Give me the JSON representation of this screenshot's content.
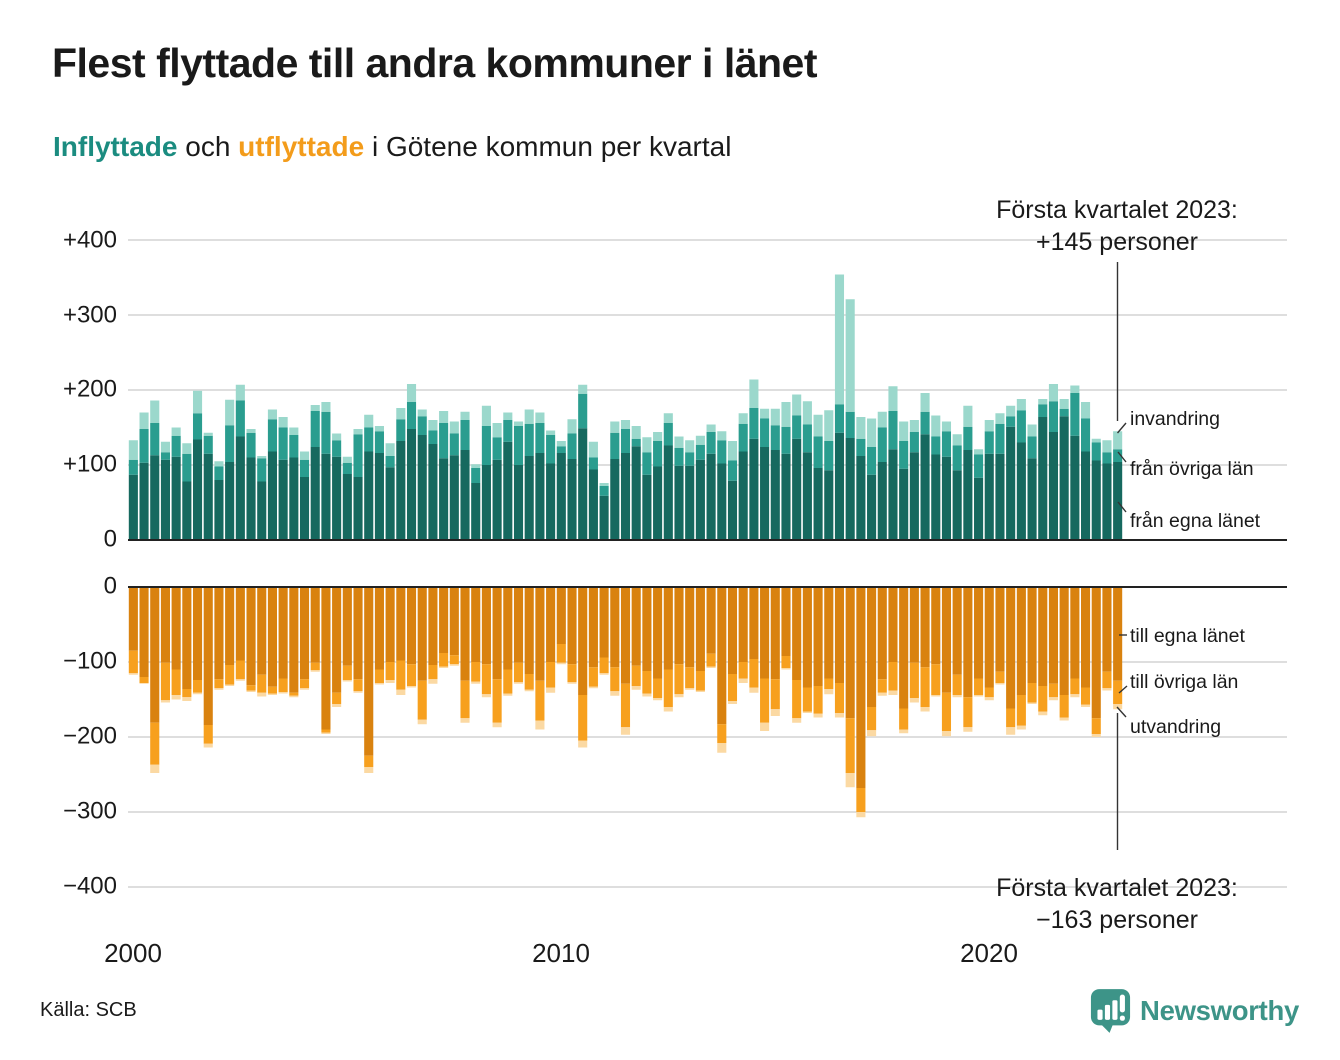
{
  "header": {
    "title": "Flest flyttade till andra kommuner i länet",
    "subtitle_inflyttade": "Inflyttade",
    "subtitle_och": " och ",
    "subtitle_utflyttade": "utflyttade",
    "subtitle_rest": " i Götene kommun per kvartal"
  },
  "annotations": {
    "top_line1": "Första kvartalet 2023:",
    "top_line2": "+145 personer",
    "bottom_line1": "Första kvartalet 2023:",
    "bottom_line2": "−163 personer"
  },
  "footer": {
    "source": "Källa: SCB",
    "logo_text": "Newsworthy"
  },
  "chart_data": {
    "type": "bar",
    "title": "Flest flyttade till andra kommuner i länet",
    "subtitle": "Inflyttade och utflyttade i Götene kommun per kvartal",
    "x_quarters": {
      "start": "2000-Q1",
      "end": "2023-Q1",
      "count": 93
    },
    "x_tick_labels": [
      "2000",
      "2010",
      "2020"
    ],
    "y_axis_top": {
      "ticks": [
        "+400",
        "+300",
        "+200",
        "+100",
        "0"
      ],
      "values": [
        400,
        300,
        200,
        100,
        0
      ]
    },
    "y_axis_bottom": {
      "ticks": [
        "0",
        "−100",
        "−200",
        "−300",
        "−400"
      ],
      "values": [
        0,
        -100,
        -200,
        -300,
        -400
      ]
    },
    "grid": true,
    "legend_position": "right-edge-labels",
    "inflow": {
      "direction": "up",
      "series": [
        {
          "name": "från egna länet",
          "color": "#16695f",
          "values": [
            87,
            103,
            113,
            107,
            111,
            78,
            134,
            115,
            80,
            104,
            138,
            110,
            78,
            118,
            107,
            110,
            84,
            124,
            115,
            111,
            88,
            84,
            118,
            116,
            97,
            132,
            148,
            140,
            128,
            109,
            113,
            120,
            76,
            100,
            107,
            131,
            100,
            112,
            116,
            102,
            116,
            108,
            149,
            94,
            59,
            108,
            116,
            125,
            87,
            98,
            126,
            99,
            99,
            107,
            115,
            102,
            79,
            118,
            135,
            124,
            120,
            115,
            135,
            117,
            96,
            93,
            143,
            136,
            112,
            87,
            104,
            121,
            95,
            117,
            141,
            114,
            111,
            93,
            120,
            83,
            115,
            115,
            151,
            130,
            109,
            164,
            144,
            165,
            139,
            118,
            106,
            102,
            104
          ]
        },
        {
          "name": "från övriga län",
          "color": "#2a9d8f",
          "values": [
            20,
            45,
            43,
            10,
            28,
            37,
            35,
            24,
            18,
            49,
            48,
            33,
            31,
            43,
            43,
            30,
            23,
            48,
            56,
            22,
            15,
            57,
            32,
            29,
            15,
            29,
            36,
            25,
            18,
            47,
            29,
            40,
            20,
            52,
            30,
            29,
            52,
            43,
            40,
            38,
            9,
            34,
            46,
            16,
            13,
            35,
            32,
            10,
            30,
            34,
            30,
            24,
            18,
            20,
            29,
            31,
            27,
            37,
            41,
            38,
            33,
            36,
            31,
            37,
            42,
            39,
            38,
            35,
            23,
            37,
            46,
            51,
            37,
            27,
            30,
            24,
            34,
            33,
            31,
            31,
            30,
            40,
            14,
            43,
            29,
            17,
            41,
            10,
            57,
            44,
            24,
            15,
            17
          ]
        },
        {
          "name": "invandring",
          "color": "#9bd8cc",
          "values": [
            26,
            22,
            30,
            14,
            11,
            14,
            30,
            4,
            7,
            34,
            21,
            5,
            3,
            13,
            14,
            10,
            11,
            8,
            13,
            9,
            8,
            7,
            17,
            7,
            17,
            15,
            24,
            9,
            14,
            16,
            16,
            11,
            5,
            27,
            19,
            10,
            6,
            19,
            14,
            6,
            7,
            19,
            12,
            21,
            4,
            15,
            12,
            17,
            20,
            12,
            13,
            15,
            16,
            12,
            10,
            12,
            26,
            14,
            38,
            13,
            22,
            33,
            28,
            31,
            29,
            41,
            173,
            150,
            29,
            38,
            21,
            33,
            26,
            16,
            25,
            28,
            13,
            15,
            28,
            7,
            15,
            14,
            14,
            15,
            16,
            7,
            23,
            13,
            10,
            22,
            5,
            16,
            24
          ]
        }
      ]
    },
    "outflow": {
      "direction": "down",
      "series": [
        {
          "name": "till egna länet",
          "color": "#d9820f",
          "values": [
            85,
            120,
            181,
            101,
            110,
            136,
            124,
            184,
            123,
            104,
            98,
            131,
            117,
            133,
            122,
            141,
            123,
            101,
            190,
            141,
            105,
            123,
            225,
            110,
            100,
            98,
            103,
            125,
            104,
            88,
            91,
            125,
            100,
            103,
            123,
            110,
            101,
            116,
            125,
            100,
            76,
            103,
            144,
            107,
            94,
            107,
            129,
            105,
            112,
            122,
            110,
            103,
            107,
            112,
            89,
            183,
            116,
            100,
            96,
            122,
            123,
            92,
            124,
            134,
            132,
            122,
            128,
            175,
            268,
            160,
            123,
            100,
            162,
            101,
            107,
            103,
            141,
            117,
            147,
            122,
            134,
            113,
            162,
            144,
            128,
            132,
            129,
            144,
            122,
            134,
            175,
            113,
            125
          ]
        },
        {
          "name": "till övriga län",
          "color": "#f7a01e",
          "values": [
            30,
            8,
            56,
            50,
            34,
            11,
            17,
            25,
            12,
            26,
            25,
            7,
            24,
            9,
            18,
            4,
            12,
            10,
            4,
            15,
            19,
            16,
            15,
            18,
            24,
            39,
            29,
            52,
            19,
            18,
            12,
            50,
            26,
            40,
            58,
            32,
            26,
            21,
            53,
            34,
            25,
            24,
            61,
            26,
            21,
            32,
            58,
            27,
            30,
            26,
            50,
            40,
            28,
            26,
            17,
            25,
            36,
            22,
            38,
            59,
            40,
            16,
            51,
            32,
            37,
            14,
            40,
            73,
            32,
            31,
            18,
            38,
            28,
            47,
            53,
            41,
            51,
            27,
            40,
            22,
            13,
            15,
            25,
            41,
            26,
            34,
            18,
            30,
            21,
            23,
            21,
            22,
            31
          ]
        },
        {
          "name": "utvandring",
          "color": "#fbd9a3",
          "values": [
            2,
            1,
            11,
            3,
            6,
            5,
            2,
            5,
            2,
            2,
            2,
            2,
            5,
            2,
            2,
            2,
            2,
            2,
            2,
            4,
            2,
            2,
            8,
            2,
            4,
            7,
            2,
            6,
            6,
            2,
            2,
            6,
            3,
            4,
            6,
            3,
            2,
            2,
            12,
            7,
            2,
            2,
            9,
            2,
            2,
            6,
            10,
            5,
            4,
            3,
            6,
            4,
            2,
            2,
            2,
            13,
            4,
            6,
            7,
            11,
            9,
            2,
            6,
            2,
            5,
            7,
            6,
            19,
            7,
            8,
            4,
            6,
            5,
            6,
            6,
            2,
            7,
            3,
            6,
            2,
            4,
            2,
            10,
            5,
            2,
            5,
            4,
            4,
            4,
            3,
            4,
            3,
            7
          ]
        }
      ]
    },
    "right_labels_top": [
      "invandring",
      "från övriga län",
      "från egna länet"
    ],
    "right_labels_bottom": [
      "till egna länet",
      "till övriga län",
      "utvandring"
    ],
    "highlight": {
      "last_quarter": "2023-Q1",
      "inflow_total": 145,
      "outflow_total": -163
    }
  }
}
